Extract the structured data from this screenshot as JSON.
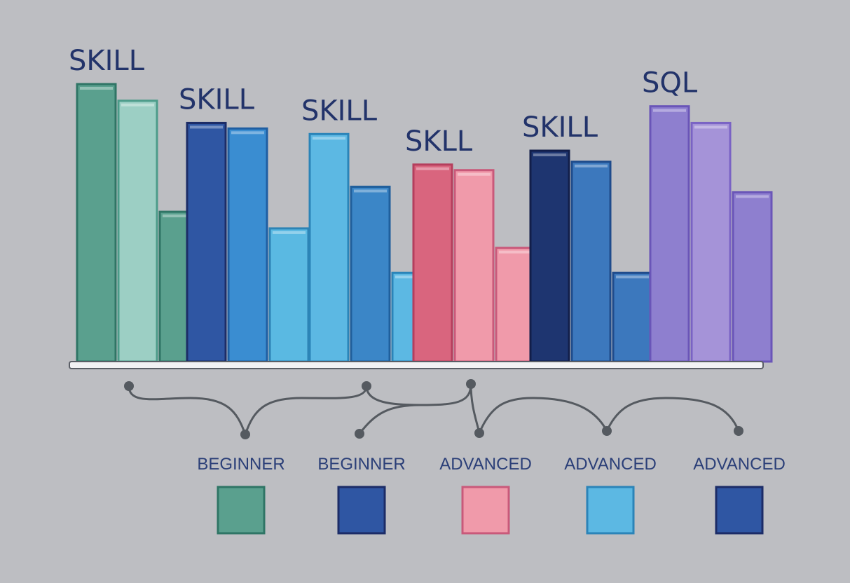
{
  "chart_data": {
    "type": "bar",
    "title": "",
    "xlabel": "",
    "ylabel": "",
    "ylim": [
      0,
      100
    ],
    "grid": false,
    "groups": [
      {
        "label": "SKILL",
        "bars": [
          {
            "value": 100,
            "fill": "#5aa08e",
            "stroke": "#2f7565"
          },
          {
            "value": 94,
            "fill": "#9ccfc4",
            "stroke": "#4c9c8a"
          },
          {
            "value": 54,
            "fill": "#5aa08e",
            "stroke": "#2f7565"
          }
        ]
      },
      {
        "label": "SKILL",
        "bars": [
          {
            "value": 86,
            "fill": "#2f56a3",
            "stroke": "#1c2c67"
          },
          {
            "value": 84,
            "fill": "#3a8dd1",
            "stroke": "#1f5ea2"
          },
          {
            "value": 48,
            "fill": "#5ab9e2",
            "stroke": "#2d83b5"
          }
        ]
      },
      {
        "label": "SKILL",
        "bars": [
          {
            "value": 82,
            "fill": "#5cb8e3",
            "stroke": "#2b84b8"
          },
          {
            "value": 63,
            "fill": "#3b86c7",
            "stroke": "#1f5f9c"
          },
          {
            "value": 32,
            "fill": "#5cb8e3",
            "stroke": "#2b84b8"
          }
        ]
      },
      {
        "label": "SKLL",
        "bars": [
          {
            "value": 71,
            "fill": "#d9657e",
            "stroke": "#b53e5d"
          },
          {
            "value": 69,
            "fill": "#f09aaa",
            "stroke": "#c9597a"
          },
          {
            "value": 41,
            "fill": "#f09aaa",
            "stroke": "#c9597a"
          }
        ]
      },
      {
        "label": "SKILL",
        "bars": [
          {
            "value": 76,
            "fill": "#1e3570",
            "stroke": "#121e4a"
          },
          {
            "value": 72,
            "fill": "#3c78bd",
            "stroke": "#1f4c8c"
          },
          {
            "value": 32,
            "fill": "#3c78bd",
            "stroke": "#1f4c8c"
          }
        ]
      },
      {
        "label": "SQL",
        "bars": [
          {
            "value": 92,
            "fill": "#8e7fcf",
            "stroke": "#6a55b8"
          },
          {
            "value": 86,
            "fill": "#a593d8",
            "stroke": "#7a63c4"
          },
          {
            "value": 61,
            "fill": "#8e7fcf",
            "stroke": "#6a55b8"
          }
        ]
      }
    ],
    "legend": {
      "placement": "bottom",
      "items": [
        {
          "label": "BEGINNER",
          "color": "#5aa08e",
          "stroke": "#2f7565"
        },
        {
          "label": "BEGINNER",
          "color": "#2f56a3",
          "stroke": "#1c2c67"
        },
        {
          "label": "ADVANCED",
          "color": "#f09aaa",
          "stroke": "#c9597a"
        },
        {
          "label": "ADVANCED",
          "color": "#5cb8e3",
          "stroke": "#2b84b8"
        },
        {
          "label": "ADVANCED",
          "color": "#2f56a3",
          "stroke": "#1c2c67"
        }
      ]
    },
    "colors": {
      "background": "#bdbec2",
      "label_text": "#22336a",
      "baseline": "#5a5e66",
      "connector": "#555a60"
    }
  }
}
